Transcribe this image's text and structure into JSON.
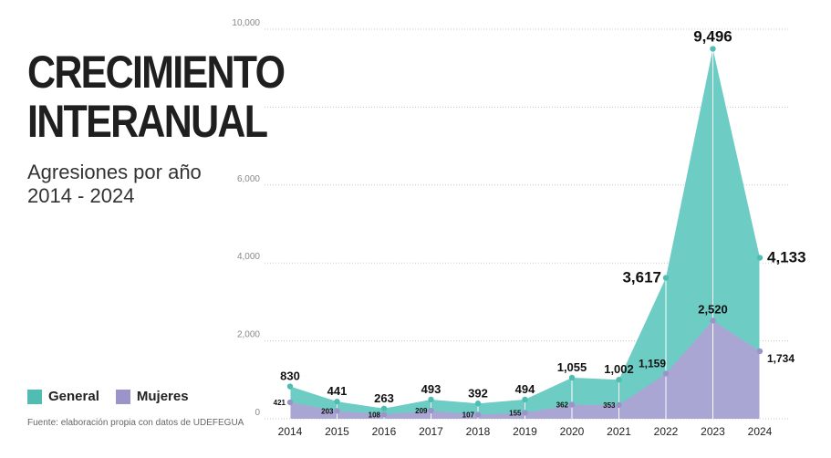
{
  "title": {
    "line1": "CRECIMIENTO",
    "line2": "INTERANUAL"
  },
  "subtitle": {
    "line1": "Agresiones por año",
    "line2": "2014 - 2024"
  },
  "legend": {
    "general": "General",
    "mujeres": "Mujeres"
  },
  "source": "Fuente: elaboración propia con datos de UDEFEGUA",
  "colors": {
    "general": "#6dccc4",
    "mujeres": "#aaa6d3",
    "general_point": "#4fbdb2",
    "mujeres_point": "#9a94c9"
  },
  "chart_data": {
    "type": "area",
    "title": "",
    "xlabel": "",
    "ylabel": "",
    "x": [
      "2014",
      "2015",
      "2016",
      "2017",
      "2018",
      "2019",
      "2020",
      "2021",
      "2022",
      "2023",
      "2024"
    ],
    "series": [
      {
        "name": "General",
        "values": [
          830,
          441,
          263,
          493,
          392,
          494,
          1055,
          1002,
          3617,
          9496,
          4133
        ],
        "labels": [
          "830",
          "441",
          "263",
          "493",
          "392",
          "494",
          "1,055",
          "1,002",
          "3,617",
          "9,496",
          "4,133"
        ]
      },
      {
        "name": "Mujeres",
        "values": [
          421,
          203,
          108,
          209,
          107,
          155,
          362,
          353,
          1159,
          2520,
          1734
        ],
        "labels": [
          "421",
          "203",
          "108",
          "209",
          "107",
          "155",
          "362",
          "353",
          "1,159",
          "2,520",
          "1,734"
        ]
      }
    ],
    "ylim": [
      0,
      10000
    ],
    "yticks": [
      0,
      2000,
      4000,
      6000,
      8000,
      10000
    ],
    "ytick_labels": [
      "0",
      "2,000",
      "4,000",
      "6,000",
      "",
      "10,000"
    ],
    "grid": true,
    "legend_position": "bottom-left"
  }
}
